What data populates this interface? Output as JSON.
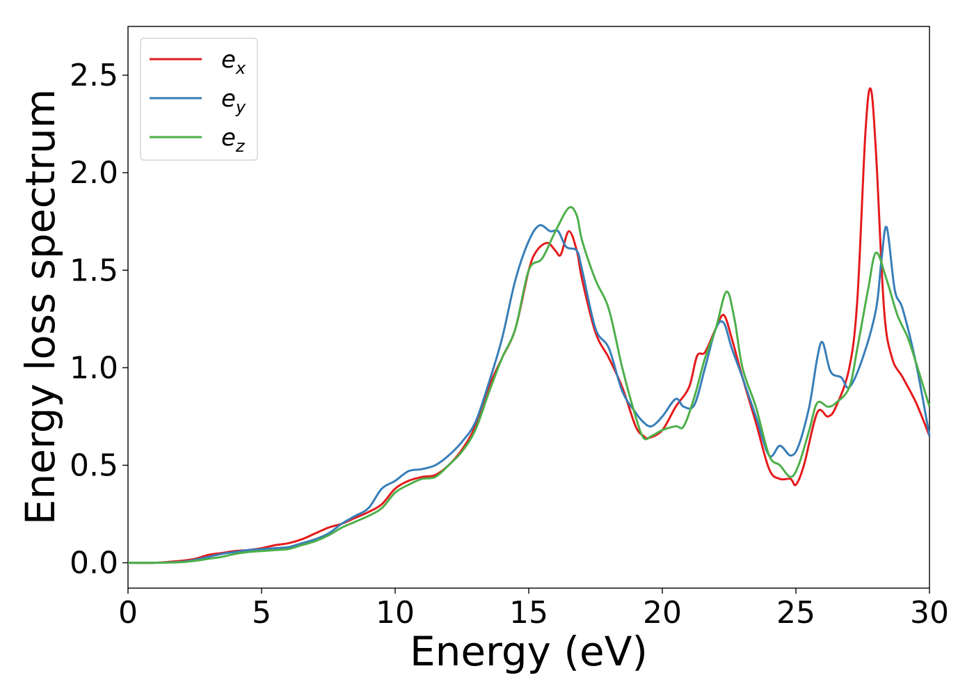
{
  "chart_data": {
    "type": "line",
    "title": "",
    "xlabel": "Energy (eV)",
    "ylabel": "Energy loss spectrum",
    "xlim": [
      0,
      30
    ],
    "ylim": [
      -0.13,
      2.75
    ],
    "xticks": [
      "0",
      "5",
      "10",
      "15",
      "20",
      "25",
      "30"
    ],
    "yticks": [
      "0.0",
      "0.5",
      "1.0",
      "1.5",
      "2.0",
      "2.5"
    ],
    "grid": false,
    "legend_position": "top-left",
    "series": [
      {
        "name": "e",
        "subscript": "x",
        "color": "#e41a1c",
        "x": [
          0,
          1,
          2,
          2.5,
          3,
          3.5,
          4,
          4.5,
          5,
          5.5,
          6,
          6.5,
          7,
          7.5,
          8,
          8.5,
          9,
          9.5,
          10,
          10.5,
          11,
          11.5,
          12,
          12.5,
          13,
          13.5,
          14,
          14.5,
          15,
          15.3,
          15.7,
          16,
          16.2,
          16.5,
          16.8,
          17,
          17.5,
          18,
          18.5,
          19,
          19.3,
          19.5,
          20,
          20.5,
          21,
          21.3,
          21.6,
          22,
          22.3,
          22.6,
          23,
          23.5,
          24,
          24.4,
          24.8,
          25,
          25.3,
          25.8,
          26.2,
          26.5,
          27,
          27.3,
          27.6,
          27.8,
          28,
          28.3,
          28.6,
          29,
          29.5,
          30
        ],
        "y": [
          0,
          0,
          0.01,
          0.02,
          0.04,
          0.05,
          0.06,
          0.065,
          0.075,
          0.09,
          0.1,
          0.12,
          0.15,
          0.18,
          0.2,
          0.23,
          0.26,
          0.3,
          0.38,
          0.42,
          0.44,
          0.45,
          0.5,
          0.58,
          0.7,
          0.9,
          1.05,
          1.2,
          1.5,
          1.6,
          1.64,
          1.6,
          1.58,
          1.7,
          1.6,
          1.45,
          1.18,
          1.05,
          0.9,
          0.7,
          0.65,
          0.64,
          0.68,
          0.8,
          0.9,
          1.06,
          1.08,
          1.2,
          1.27,
          1.15,
          0.95,
          0.72,
          0.48,
          0.43,
          0.43,
          0.4,
          0.5,
          0.77,
          0.75,
          0.8,
          1.0,
          1.35,
          2.2,
          2.43,
          2.1,
          1.3,
          1.05,
          0.95,
          0.82,
          0.65
        ]
      },
      {
        "name": "e",
        "subscript": "y",
        "color": "#377eb8",
        "x": [
          0,
          1,
          2,
          2.5,
          3,
          3.5,
          4,
          4.5,
          5,
          5.5,
          6,
          6.5,
          7,
          7.5,
          8,
          8.5,
          9,
          9.5,
          10,
          10.5,
          11,
          11.5,
          12,
          12.5,
          13,
          13.5,
          14,
          14.5,
          15,
          15.4,
          15.8,
          16.1,
          16.4,
          16.8,
          17,
          17.5,
          18,
          18.5,
          19,
          19.3,
          19.6,
          20,
          20.5,
          20.8,
          21.2,
          21.6,
          22,
          22.3,
          22.6,
          23,
          23.5,
          24,
          24.4,
          24.8,
          25.1,
          25.5,
          25.8,
          26,
          26.3,
          26.7,
          27,
          27.5,
          28,
          28.2,
          28.4,
          28.7,
          29,
          29.5,
          30
        ],
        "y": [
          0,
          0,
          0.005,
          0.015,
          0.03,
          0.045,
          0.055,
          0.065,
          0.07,
          0.075,
          0.08,
          0.1,
          0.12,
          0.15,
          0.2,
          0.24,
          0.28,
          0.38,
          0.42,
          0.47,
          0.48,
          0.5,
          0.55,
          0.62,
          0.72,
          0.92,
          1.15,
          1.45,
          1.65,
          1.73,
          1.7,
          1.7,
          1.62,
          1.6,
          1.5,
          1.2,
          1.1,
          0.88,
          0.77,
          0.72,
          0.7,
          0.75,
          0.84,
          0.8,
          0.81,
          1.0,
          1.2,
          1.23,
          1.1,
          0.95,
          0.75,
          0.55,
          0.6,
          0.55,
          0.6,
          0.8,
          1.05,
          1.13,
          0.98,
          0.95,
          0.9,
          1.05,
          1.3,
          1.55,
          1.72,
          1.4,
          1.3,
          1.02,
          0.65
        ]
      },
      {
        "name": "e",
        "subscript": "z",
        "color": "#4daf4a",
        "x": [
          0,
          1,
          2,
          2.5,
          3,
          3.5,
          4,
          4.5,
          5,
          5.5,
          6,
          6.5,
          7,
          7.5,
          8,
          8.5,
          9,
          9.5,
          10,
          10.5,
          11,
          11.5,
          12,
          12.5,
          13,
          13.5,
          14,
          14.5,
          15,
          15.5,
          16,
          16.5,
          16.8,
          17,
          17.5,
          18,
          18.5,
          19,
          19.3,
          19.6,
          20,
          20.5,
          20.8,
          21.2,
          21.6,
          22,
          22.4,
          22.7,
          23,
          23.5,
          24,
          24.4,
          24.8,
          25.1,
          25.5,
          25.8,
          26.2,
          26.5,
          27,
          27.3,
          27.7,
          28,
          28.4,
          28.8,
          29.2,
          29.6,
          30
        ],
        "y": [
          0,
          0,
          0.003,
          0.01,
          0.02,
          0.03,
          0.045,
          0.055,
          0.06,
          0.065,
          0.07,
          0.09,
          0.11,
          0.14,
          0.18,
          0.21,
          0.24,
          0.28,
          0.36,
          0.4,
          0.43,
          0.44,
          0.5,
          0.57,
          0.68,
          0.87,
          1.05,
          1.2,
          1.5,
          1.56,
          1.7,
          1.82,
          1.78,
          1.65,
          1.45,
          1.3,
          1.0,
          0.75,
          0.64,
          0.65,
          0.68,
          0.7,
          0.7,
          0.85,
          1.05,
          1.2,
          1.39,
          1.25,
          1.0,
          0.8,
          0.55,
          0.5,
          0.44,
          0.5,
          0.68,
          0.82,
          0.8,
          0.82,
          0.9,
          1.1,
          1.4,
          1.59,
          1.45,
          1.27,
          1.15,
          0.98,
          0.8
        ]
      }
    ]
  }
}
